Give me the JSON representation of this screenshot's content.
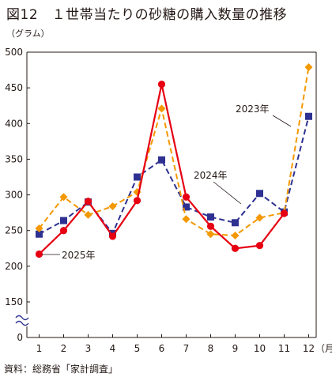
{
  "figure": {
    "title": "図12　１世帯当たりの砂糖の購入数量の推移",
    "source": "資料：総務省「家計調査」"
  },
  "chart_data": {
    "type": "line",
    "ylabel": "（グラム）",
    "xlabel": "（月）",
    "categories": [
      "1",
      "2",
      "3",
      "4",
      "5",
      "6",
      "7",
      "8",
      "9",
      "10",
      "11",
      "12"
    ],
    "y_ticks": [
      0,
      150,
      200,
      250,
      300,
      350,
      400,
      450,
      500
    ],
    "ylim": [
      0,
      500
    ],
    "y_axis_break": [
      0,
      150
    ],
    "grid": false,
    "series": [
      {
        "name": "2023年",
        "color": "#2e3192",
        "marker": "square",
        "style": "dashed",
        "values": [
          245,
          264,
          290,
          246,
          325,
          349,
          283,
          269,
          261,
          302,
          276,
          410
        ]
      },
      {
        "name": "2024年",
        "color": "#f39800",
        "marker": "diamond",
        "style": "dashed",
        "values": [
          253,
          297,
          272,
          284,
          304,
          421,
          266,
          245,
          243,
          268,
          275,
          479
        ]
      },
      {
        "name": "2025年",
        "color": "#e60012",
        "marker": "circle",
        "style": "solid",
        "values": [
          217,
          250,
          291,
          242,
          292,
          455,
          297,
          256,
          225,
          229,
          274,
          null
        ]
      }
    ]
  }
}
